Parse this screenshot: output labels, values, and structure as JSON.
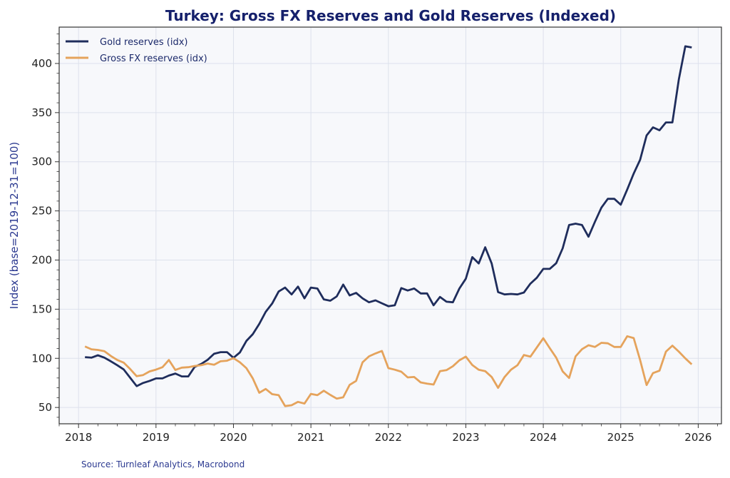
{
  "chart_data": {
    "type": "line",
    "title": "Turkey: Gross FX Reserves and Gold Reserves (Indexed)",
    "xlabel": "",
    "ylabel": "Index (base=2019-12-31=100)",
    "source": "Source: Turnleaf Analytics, Macrobond",
    "x_start": "2018-01",
    "x_end": "2025-11",
    "x_frequency": "monthly",
    "xlim": [
      2017.75,
      2026.3
    ],
    "ylim": [
      33.4,
      437
    ],
    "x_ticks": [
      2018,
      2019,
      2020,
      2021,
      2022,
      2023,
      2024,
      2025,
      2026
    ],
    "x_tick_labels": [
      "2018",
      "2019",
      "2020",
      "2021",
      "2022",
      "2023",
      "2024",
      "2025",
      "2026"
    ],
    "y_ticks": [
      50,
      100,
      150,
      200,
      250,
      300,
      350,
      400
    ],
    "y_tick_labels": [
      "50",
      "100",
      "150",
      "200",
      "250",
      "300",
      "350",
      "400"
    ],
    "grid": true,
    "legend_position": "top-left",
    "series": [
      {
        "name": "Gold reserves (idx)",
        "color": "#1f2d5c",
        "values": [
          101.2,
          100.7,
          103.1,
          100.7,
          97,
          93,
          88.7,
          80.2,
          71.7,
          74.9,
          77,
          79.6,
          79.6,
          82.5,
          84.5,
          81.6,
          81.6,
          91.3,
          94.2,
          98.5,
          104.6,
          106.3,
          106.3,
          100.5,
          106,
          117.7,
          124.6,
          135,
          147.3,
          155.8,
          168,
          172,
          165,
          173,
          161,
          172,
          171,
          160,
          158.6,
          163,
          175,
          164,
          166.6,
          161,
          157,
          159,
          156,
          153,
          154,
          171.5,
          169,
          171,
          166,
          166,
          154,
          162.5,
          157.6,
          157,
          171,
          181,
          203,
          196.5,
          213,
          196.5,
          167.4,
          165,
          165.5,
          165,
          167,
          176,
          182,
          191,
          191,
          196.8,
          212,
          235.6,
          237,
          235.6,
          223.7,
          238.8,
          253.3,
          262.3,
          262.3,
          256.3,
          271.7,
          288,
          302,
          326.7,
          335,
          332,
          340,
          340,
          383.7,
          417.5,
          416.3
        ]
      },
      {
        "name": "Gross FX reserves (idx)",
        "color": "#e5a35c",
        "values": [
          112.1,
          109.2,
          108.5,
          107.3,
          102.4,
          98.3,
          95.6,
          89.1,
          81.8,
          83,
          86.7,
          88.5,
          91,
          98.3,
          88.1,
          90.5,
          91,
          92.2,
          93,
          94.7,
          93.5,
          97,
          97.6,
          100.2,
          96,
          90,
          79.6,
          65,
          68.8,
          63.5,
          62.5,
          51.4,
          52.3,
          55.7,
          54,
          63.8,
          62.5,
          67,
          62.8,
          59,
          60.3,
          73,
          77,
          96,
          102,
          105,
          107.5,
          90,
          88.4,
          86.4,
          80.6,
          81,
          75.5,
          74.3,
          73.3,
          87,
          88,
          92,
          98,
          101.7,
          93.2,
          88.4,
          87,
          81,
          70,
          81,
          88.4,
          93,
          103.4,
          101.7,
          111,
          120.4,
          110.4,
          100.7,
          86.7,
          80,
          102,
          109.3,
          113.3,
          111.6,
          115.8,
          115.3,
          111.6,
          111.6,
          122.5,
          120.6,
          98.3,
          72.8,
          85,
          87.4,
          106.8,
          112.9,
          106.8,
          100,
          93.9
        ]
      }
    ]
  }
}
